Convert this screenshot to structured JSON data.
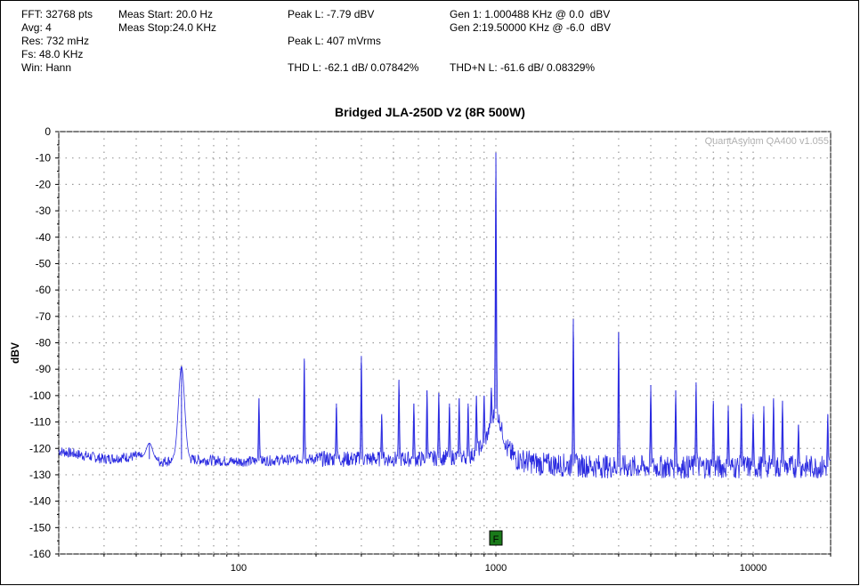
{
  "info": {
    "fft": "FFT: 32768 pts",
    "avg": "Avg: 4",
    "res": "Res: 732 mHz",
    "fs": "Fs: 48.0 KHz",
    "win": "Win: Hann",
    "meas_start": "Meas Start: 20.0 Hz",
    "meas_stop": "Meas Stop:24.0 KHz",
    "peak_l_dbv": "Peak L: -7.79 dBV",
    "peak_l_vrms": "Peak L: 407 mVrms",
    "thd_l": "THD L: -62.1 dB/ 0.07842%",
    "gen1": "Gen 1: 1.000488 KHz @ 0.0  dBV",
    "gen2": "Gen 2:19.50000 KHz @ -6.0  dBV",
    "thdn_l": "THD+N L: -61.6 dB/ 0.08329%"
  },
  "watermark": "QuantAsylum QA400 v1.055",
  "marker_label": "F",
  "colors": {
    "trace": "#2a2ae0",
    "grid": "#999999",
    "marker": "#1a7a1a"
  },
  "chart_data": {
    "type": "line",
    "title": "Bridged JLA-250D V2 (8R 500W)",
    "ylabel": "dBV",
    "xlabel": "",
    "xscale": "log",
    "xlim": [
      20,
      20000
    ],
    "ylim": [
      -160,
      0
    ],
    "xticks": [
      100,
      1000,
      10000
    ],
    "xtick_labels": [
      "100",
      "1000",
      "10000"
    ],
    "yticks": [
      0,
      -10,
      -20,
      -30,
      -40,
      -50,
      -60,
      -70,
      -80,
      -90,
      -100,
      -110,
      -120,
      -130,
      -140,
      -150,
      -160
    ],
    "grid": true,
    "marker_freq": 1000,
    "series": [
      {
        "values_note": "",
        "noise_floor": [
          [
            20,
            -121
          ],
          [
            30,
            -124
          ],
          [
            40,
            -123
          ],
          [
            50,
            -125
          ],
          [
            60,
            -124
          ],
          [
            100,
            -125
          ],
          [
            200,
            -124
          ],
          [
            500,
            -124
          ],
          [
            800,
            -123
          ],
          [
            900,
            -118
          ],
          [
            950,
            -112
          ],
          [
            1000,
            -105
          ],
          [
            1050,
            -112
          ],
          [
            1100,
            -120
          ],
          [
            1200,
            -124
          ],
          [
            1500,
            -126
          ],
          [
            3000,
            -127
          ],
          [
            10000,
            -127
          ],
          [
            20000,
            -127
          ]
        ],
        "peaks": [
          [
            45,
            -118
          ],
          [
            60,
            -89
          ],
          [
            120,
            -101
          ],
          [
            180,
            -86
          ],
          [
            240,
            -103
          ],
          [
            300,
            -85
          ],
          [
            360,
            -107
          ],
          [
            420,
            -94
          ],
          [
            480,
            -103
          ],
          [
            540,
            -98
          ],
          [
            600,
            -99
          ],
          [
            660,
            -103
          ],
          [
            720,
            -101
          ],
          [
            780,
            -103
          ],
          [
            840,
            -100
          ],
          [
            900,
            -100
          ],
          [
            960,
            -97
          ],
          [
            1000,
            -8
          ],
          [
            2000,
            -71
          ],
          [
            3000,
            -76
          ],
          [
            4000,
            -96
          ],
          [
            5000,
            -98
          ],
          [
            6000,
            -95
          ],
          [
            7000,
            -102
          ],
          [
            8000,
            -104
          ],
          [
            9000,
            -103
          ],
          [
            10000,
            -107
          ],
          [
            11000,
            -104
          ],
          [
            12000,
            -101
          ],
          [
            13000,
            -102
          ],
          [
            15000,
            -111
          ],
          [
            19500,
            -107
          ]
        ]
      }
    ]
  }
}
